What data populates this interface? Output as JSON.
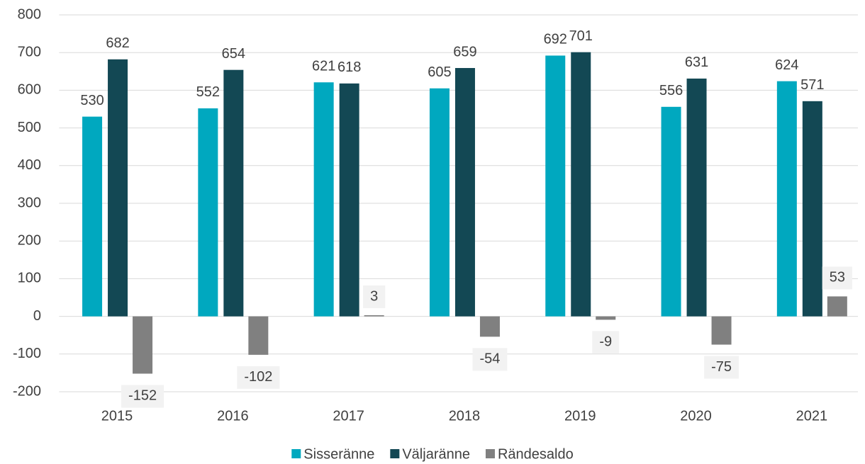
{
  "chart_data": {
    "type": "bar",
    "categories": [
      "2015",
      "2016",
      "2017",
      "2018",
      "2019",
      "2020",
      "2021"
    ],
    "series": [
      {
        "name": "Sisseränne",
        "color": "#00a8bf",
        "values": [
          530,
          552,
          621,
          605,
          692,
          556,
          624
        ]
      },
      {
        "name": "Väljaränne",
        "color": "#134854",
        "values": [
          682,
          654,
          618,
          659,
          701,
          631,
          571
        ]
      },
      {
        "name": "Rändesaldo",
        "color": "#808080",
        "values": [
          -152,
          -102,
          3,
          -54,
          -9,
          -75,
          53
        ]
      }
    ],
    "ylim": [
      -200,
      800
    ],
    "yticks": [
      -200,
      -100,
      0,
      100,
      200,
      300,
      400,
      500,
      600,
      700,
      800
    ],
    "grid": true,
    "legend": "bottom"
  }
}
